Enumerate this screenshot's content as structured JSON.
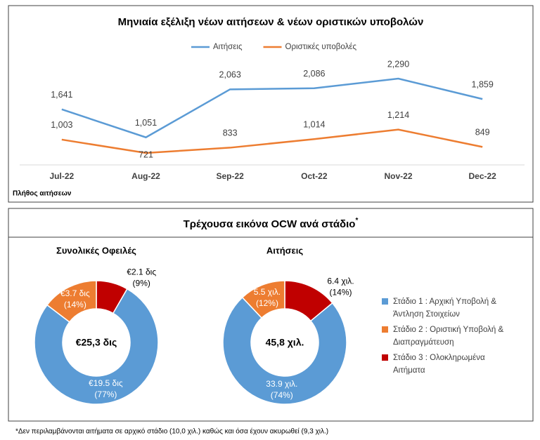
{
  "chart_data": [
    {
      "type": "line",
      "title": "Μηνιαία εξέλιξη νέων αιτήσεων & νέων οριστικών υποβολών",
      "categories": [
        "Jul-22",
        "Aug-22",
        "Sep-22",
        "Oct-22",
        "Nov-22",
        "Dec-22"
      ],
      "series": [
        {
          "name": "Αιτήσεις",
          "color": "#5b9bd5",
          "values": [
            1641,
            1051,
            2063,
            2086,
            2290,
            1859
          ],
          "value_labels": [
            "1,641",
            "1,051",
            "2,063",
            "2,086",
            "2,290",
            "1,859"
          ]
        },
        {
          "name": "Οριστικές υποβολές",
          "color": "#ed7d31",
          "values": [
            1003,
            721,
            833,
            1014,
            1214,
            849
          ],
          "value_labels": [
            "1,003",
            "721",
            "833",
            "1,014",
            "1,214",
            "849"
          ]
        }
      ],
      "ylabel": "Πλήθος αιτήσεων"
    },
    {
      "type": "donut",
      "title": "Συνολικές Οφειλές",
      "center_label": "€25,3 δις",
      "categories": [
        "Στάδιο 1 : Αρχική Υποβολή & Άντληση Στοιχείων",
        "Στάδιο 2 : Οριστική Υποβολή & Διαπραγμάτευση",
        "Στάδιο 3 : Ολοκληρωμένα Αιτήματα"
      ],
      "colors": [
        "#5b9bd5",
        "#ed7d31",
        "#c00000"
      ],
      "values": [
        19.5,
        3.7,
        2.1
      ],
      "value_labels": [
        "€19.5 δις",
        "€3.7 δις",
        "€2.1 δις"
      ],
      "percents": [
        77,
        14,
        9
      ],
      "percent_labels": [
        "(77%)",
        "(14%)",
        "(9%)"
      ]
    },
    {
      "type": "donut",
      "title": "Αιτήσεις",
      "center_label": "45,8 χιλ.",
      "colors": [
        "#5b9bd5",
        "#ed7d31",
        "#c00000"
      ],
      "values": [
        33.9,
        5.5,
        6.4
      ],
      "value_labels": [
        "33.9 χιλ.",
        "5.5 χιλ.",
        "6.4 χιλ."
      ],
      "percents": [
        74,
        12,
        14
      ],
      "percent_labels": [
        "(74%)",
        "(12%)",
        "(14%)"
      ]
    }
  ],
  "panel_title": "Τρέχουσα εικόνα OCW ανά στάδιο",
  "panel_title_mark": "*",
  "footnote": "*Δεν περιλαμβάνονται αιτήματα σε αρχικό στάδιο (10,0 χιλ.) καθώς και όσα έχουν ακυρωθεί (9,3 χιλ.)"
}
